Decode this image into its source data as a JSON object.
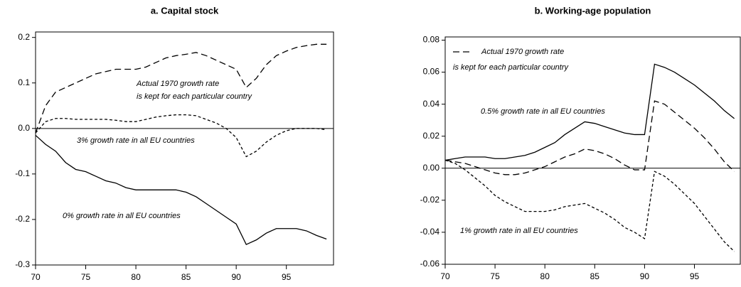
{
  "chart_data": [
    {
      "type": "line",
      "title": "a. Capital stock",
      "x": [
        70,
        71,
        72,
        73,
        74,
        75,
        76,
        77,
        78,
        79,
        80,
        81,
        82,
        83,
        84,
        85,
        86,
        87,
        88,
        89,
        90,
        91,
        92,
        93,
        94,
        95,
        96,
        97,
        98,
        99
      ],
      "xlim": [
        70,
        99.7
      ],
      "xticks": [
        70,
        75,
        80,
        85,
        90,
        95
      ],
      "ylim": [
        -0.3,
        0.212
      ],
      "yticks": [
        -0.3,
        -0.2,
        -0.1,
        {
          "value": 0,
          "label": "0.0"
        },
        0.1,
        0.2
      ],
      "hline": 0,
      "annotations": [
        "Actual 1970 growth rate",
        "is kept for each particular country",
        "3% growth rate in all EU countries",
        "0% growth rate in all EU countries"
      ],
      "series": [
        {
          "dash": "long",
          "color": "#000000",
          "values": [
            -0.01,
            0.05,
            0.08,
            0.09,
            0.1,
            0.11,
            0.12,
            0.125,
            0.13,
            0.13,
            0.13,
            0.135,
            0.145,
            0.155,
            0.16,
            0.163,
            0.167,
            0.16,
            0.15,
            0.14,
            0.13,
            0.09,
            0.11,
            0.14,
            0.16,
            0.17,
            0.178,
            0.182,
            0.185,
            0.185
          ]
        },
        {
          "dash": "short",
          "color": "#000000",
          "values": [
            -0.01,
            0.015,
            0.022,
            0.022,
            0.02,
            0.02,
            0.02,
            0.02,
            0.018,
            0.015,
            0.015,
            0.02,
            0.025,
            0.028,
            0.03,
            0.03,
            0.028,
            0.02,
            0.012,
            0,
            -0.02,
            -0.062,
            -0.05,
            -0.03,
            -0.015,
            -0.005,
            0,
            0,
            0,
            -0.003
          ]
        },
        {
          "dash": "solid",
          "color": "#000000",
          "values": [
            -0.015,
            -0.035,
            -0.05,
            -0.075,
            -0.09,
            -0.095,
            -0.105,
            -0.115,
            -0.12,
            -0.13,
            -0.135,
            -0.135,
            -0.135,
            -0.135,
            -0.135,
            -0.14,
            -0.15,
            -0.165,
            -0.18,
            -0.195,
            -0.21,
            -0.255,
            -0.245,
            -0.23,
            -0.22,
            -0.22,
            -0.22,
            -0.225,
            -0.235,
            -0.243
          ]
        }
      ]
    },
    {
      "type": "line",
      "title": "b. Working-age population",
      "x": [
        70,
        71,
        72,
        73,
        74,
        75,
        76,
        77,
        78,
        79,
        80,
        81,
        82,
        83,
        84,
        85,
        86,
        87,
        88,
        89,
        90,
        91,
        92,
        93,
        94,
        95,
        96,
        97,
        98,
        99
      ],
      "xlim": [
        70,
        99.6
      ],
      "xticks": [
        70,
        75,
        80,
        85,
        90,
        95
      ],
      "ylim": [
        -0.06,
        0.082
      ],
      "yticks": [
        -0.06,
        -0.04,
        -0.02,
        {
          "value": 0,
          "label": "0.00"
        },
        0.02,
        0.04,
        0.06,
        0.08
      ],
      "hline": 0,
      "annotations": [
        "Actual 1970 growth rate",
        "is kept for each particular country",
        "0.5% growth rate in all EU countries",
        "1% growth rate in all EU countries"
      ],
      "series": [
        {
          "dash": "solid",
          "color": "#000000",
          "values": [
            0.005,
            0.006,
            0.007,
            0.007,
            0.007,
            0.006,
            0.006,
            0.007,
            0.008,
            0.01,
            0.013,
            0.016,
            0.021,
            0.025,
            0.029,
            0.028,
            0.026,
            0.024,
            0.022,
            0.021,
            0.021,
            0.065,
            0.063,
            0.06,
            0.056,
            0.052,
            0.047,
            0.042,
            0.036,
            0.031
          ]
        },
        {
          "dash": "long",
          "color": "#000000",
          "values": [
            0.005,
            0.004,
            0.003,
            0.001,
            -0.001,
            -0.003,
            -0.004,
            -0.004,
            -0.003,
            -0.001,
            0.001,
            0.004,
            0.007,
            0.009,
            0.012,
            0.011,
            0.009,
            0.006,
            0.002,
            -0.001,
            -0.001,
            0.042,
            0.04,
            0.035,
            0.03,
            0.025,
            0.019,
            0.012,
            0.004,
            -0.002
          ]
        },
        {
          "dash": "short",
          "color": "#000000",
          "values": [
            0.005,
            0.003,
            -0.001,
            -0.006,
            -0.011,
            -0.017,
            -0.021,
            -0.024,
            -0.027,
            -0.027,
            -0.027,
            -0.026,
            -0.024,
            -0.023,
            -0.022,
            -0.025,
            -0.028,
            -0.032,
            -0.037,
            -0.04,
            -0.044,
            -0.002,
            -0.005,
            -0.01,
            -0.016,
            -0.022,
            -0.03,
            -0.038,
            -0.046,
            -0.052
          ]
        }
      ]
    }
  ]
}
